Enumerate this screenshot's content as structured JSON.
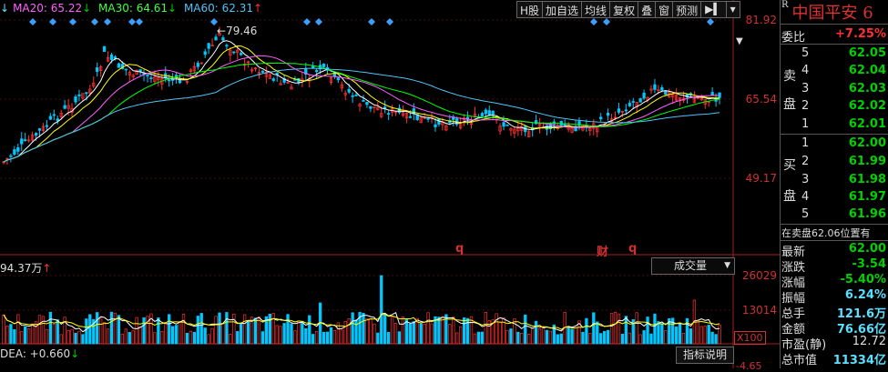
{
  "ma_legend": {
    "ma20": "MA20: 65.22",
    "ma20_arrow": "↓",
    "ma30": "MA30: 64.61",
    "ma30_arrow": "↓",
    "ma60": "MA60: 62.31",
    "ma60_arrow": "↑",
    "prefix_arrow": "↓"
  },
  "toolbar": [
    "H股",
    "加自选",
    "均线",
    "复权",
    "叠",
    "窗",
    "预测"
  ],
  "price_axis": {
    "top": "81.92",
    "mid": "65.54",
    "bottom": "49.17"
  },
  "peak_label": "79.46",
  "event_markers": {
    "q1": "q",
    "cai": "财",
    "q2": "q"
  },
  "volume": {
    "header": "94.37万",
    "header_arrow": "↑",
    "selector": "成交量",
    "axis_top": "26029",
    "axis_mid": "13014",
    "unit": "X100"
  },
  "macd": {
    "dea": "DEA: +0.660",
    "dea_arrow": "↓",
    "button": "指标说明",
    "axis": "-4.65"
  },
  "quote_panel": {
    "title": "中国平安 6",
    "title_tag": "R",
    "weibi_label": "委比",
    "weibi_value": "+7.25%",
    "sell_label_1": "卖",
    "sell_label_2": "盘",
    "buy_label_1": "买",
    "buy_label_2": "盘",
    "sell": [
      {
        "level": "5",
        "price": "62.05"
      },
      {
        "level": "4",
        "price": "62.04"
      },
      {
        "level": "3",
        "price": "62.03"
      },
      {
        "level": "2",
        "price": "62.02"
      },
      {
        "level": "1",
        "price": "62.01"
      }
    ],
    "buy": [
      {
        "level": "1",
        "price": "62.00"
      },
      {
        "level": "2",
        "price": "61.99"
      },
      {
        "level": "3",
        "price": "61.98"
      },
      {
        "level": "4",
        "price": "61.97"
      },
      {
        "level": "5",
        "price": "61.96"
      }
    ],
    "position_note": "在卖盘62.06位置有",
    "stats": [
      {
        "label": "最新",
        "value": "62.00"
      },
      {
        "label": "涨跌",
        "value": "-3.54"
      },
      {
        "label": "涨幅",
        "value": "-5.40%"
      },
      {
        "label": "振幅",
        "value": "6.24%"
      },
      {
        "label": "总手",
        "value": "121.6万"
      },
      {
        "label": "金额",
        "value": "76.66亿"
      },
      {
        "label": "市盈(静)",
        "value": "12.72"
      },
      {
        "label": "总市值",
        "value": "11334亿"
      }
    ]
  },
  "colors": {
    "up": "#ff3030",
    "down": "#00c8ff",
    "ma5": "#ffffff",
    "ma10": "#ffff00",
    "ma20": "#ff60ff",
    "ma30": "#00ff00",
    "ma60": "#4fc3f7"
  }
}
